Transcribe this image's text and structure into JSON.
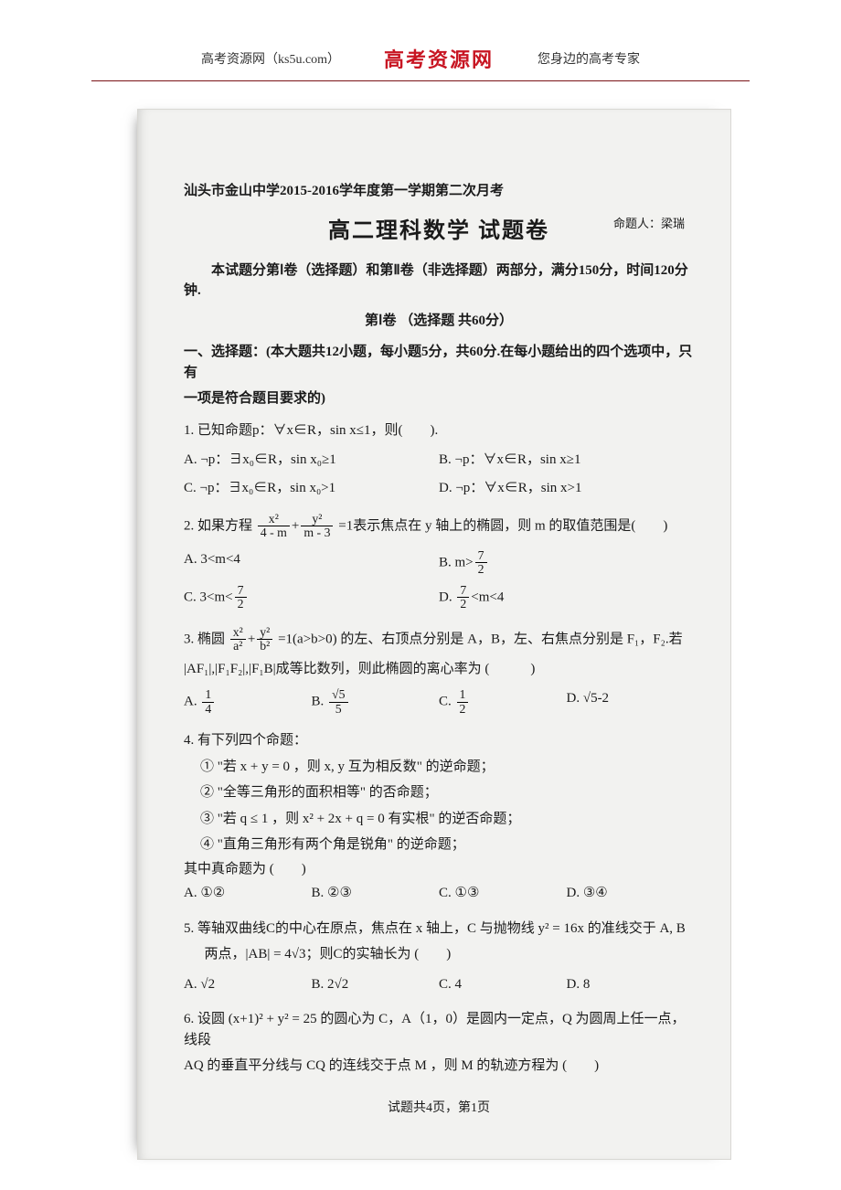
{
  "header": {
    "left": "高考资源网（ks5u.com）",
    "center": "高考资源网",
    "right": "您身边的高考专家"
  },
  "exam": {
    "source": "汕头市金山中学2015-2016学年度第一学期第二次月考",
    "title": "高二理科数学  试题卷",
    "author": "命题人：梁瑞",
    "instruction": "本试题分第Ⅰ卷（选择题）和第Ⅱ卷（非选择题）两部分，满分150分，时间120分钟.",
    "part1_head": "第Ⅰ卷 （选择题  共60分）",
    "section1a": "一、选择题：(本大题共12小题，每小题5分，共60分.在每小题给出的四个选项中，只有",
    "section1b": "一项是符合题目要求的)"
  },
  "q1": {
    "stem": "1. 已知命题p：∀x∈R，sin x≤1，则(　　).",
    "A": "A. ¬p：∃x₀∈R，sin x₀≥1",
    "B": "B. ¬p：∀x∈R，sin x≥1",
    "C": "C. ¬p：∃x₀∈R，sin x₀>1",
    "D": "D. ¬p：∀x∈R，sin x>1"
  },
  "q2": {
    "stem_pre": "2. 如果方程",
    "stem_post": "=1表示焦点在 y 轴上的椭圆，则 m 的取值范围是(　　)",
    "A": "A. 3<m<4",
    "B_pre": "B. m>",
    "C_pre": "C. 3<m<",
    "D_pre": "D. ",
    "D_post": "<m<4"
  },
  "q3": {
    "stem_pre": "3. 椭圆",
    "stem_post": "=1(a>b>0) 的左、右顶点分别是 A，B，左、右焦点分别是 F₁，F₂.若",
    "stem2": "|AF₁|,|F₁F₂|,|F₁B|成等比数列，则此椭圆的离心率为 (　　　)",
    "A_pre": "A. ",
    "B_pre": "B. ",
    "C_pre": "C. ",
    "D": "D. √5-2"
  },
  "q4": {
    "stem": "4. 有下列四个命题：",
    "s1": "① \"若 x + y = 0 ，则 x, y 互为相反数\" 的逆命题；",
    "s2": "② \"全等三角形的面积相等\" 的否命题；",
    "s3": "③ \"若 q ≤ 1 ，则 x² + 2x + q = 0 有实根\" 的逆否命题；",
    "s4": "④ \"直角三角形有两个角是锐角\" 的逆命题；",
    "tail": "其中真命题为 (　　)",
    "A": "A. ①②",
    "B": "B. ②③",
    "C": "C. ①③",
    "D": "D. ③④"
  },
  "q5": {
    "stem": "5. 等轴双曲线C的中心在原点，焦点在 x 轴上，C 与抛物线 y² = 16x 的准线交于 A, B",
    "stem2": "两点，|AB| = 4√3；则C的实轴长为 (　　)",
    "A": "A. √2",
    "B": "B. 2√2",
    "C": "C. 4",
    "D": "D. 8"
  },
  "q6": {
    "stem": "6. 设圆 (x+1)² + y² = 25 的圆心为 C，A（1，0）是圆内一定点，Q 为圆周上任一点，线段",
    "stem2": "AQ 的垂直平分线与 CQ 的连线交于点 M ，则 M 的轨迹方程为 (　　)"
  },
  "footer": "试题共4页，第1页"
}
